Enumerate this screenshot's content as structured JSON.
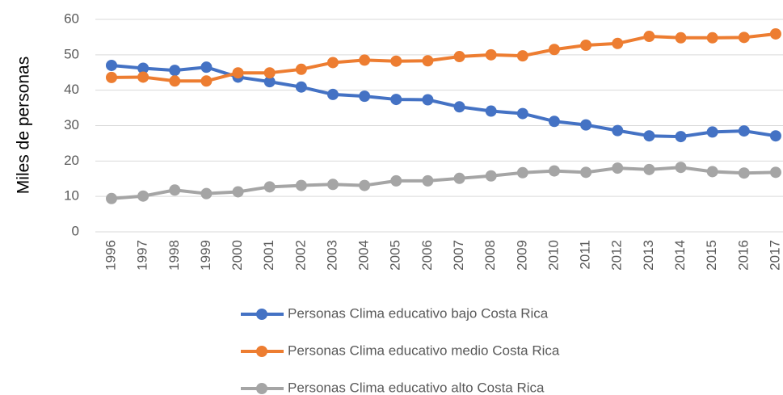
{
  "chart_data": {
    "type": "line",
    "y_label": "Miles de personas",
    "x": [
      "1996",
      "1997",
      "1998",
      "1999",
      "2000",
      "2001",
      "2002",
      "2003",
      "2004",
      "2005",
      "2006",
      "2007",
      "2008",
      "2009",
      "2010",
      "2011",
      "2012",
      "2013",
      "2014",
      "2015",
      "2016",
      "2017"
    ],
    "series": [
      {
        "name": "Personas Clima educativo bajo Costa Rica",
        "color": "#4472c4",
        "values": [
          47,
          46.2,
          45.6,
          46.5,
          43.7,
          42.4,
          40.9,
          38.8,
          38.3,
          37.4,
          37.3,
          35.3,
          34.1,
          33.4,
          31.2,
          30.2,
          28.6,
          27.1,
          26.9,
          28.2,
          28.5,
          27.1
        ]
      },
      {
        "name": "Personas Clima educativo medio Costa Rica",
        "color": "#ed7d31",
        "values": [
          43.6,
          43.7,
          42.6,
          42.6,
          44.9,
          44.9,
          45.9,
          47.8,
          48.5,
          48.2,
          48.3,
          49.5,
          50.0,
          49.7,
          51.5,
          52.7,
          53.2,
          55.2,
          54.8,
          54.8,
          54.9,
          55.9
        ]
      },
      {
        "name": "Personas Clima educativo alto Costa Rica",
        "color": "#a5a5a5",
        "values": [
          9.4,
          10.1,
          11.8,
          10.8,
          11.3,
          12.7,
          13.1,
          13.4,
          13.1,
          14.4,
          14.4,
          15.1,
          15.8,
          16.7,
          17.2,
          16.8,
          18.0,
          17.6,
          18.2,
          17.0,
          16.6,
          16.8
        ]
      }
    ],
    "ylim": [
      0,
      60
    ],
    "yticks": [
      0,
      10,
      20,
      30,
      40,
      50,
      60
    ],
    "grid": true,
    "legend": "bottom"
  }
}
